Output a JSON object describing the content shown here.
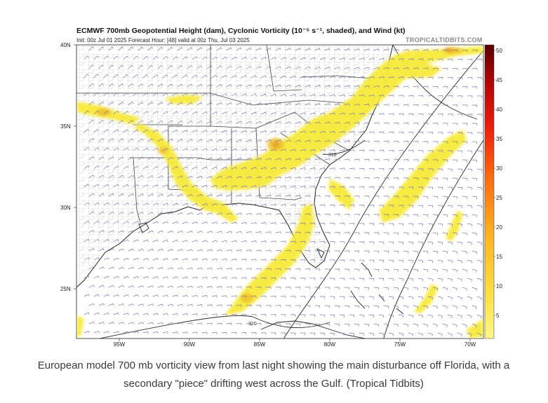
{
  "figure": {
    "title": "ECMWF 700mb Geopotential Height (dam), Cyclonic Vorticity (10⁻⁵ s⁻¹, shaded), and Wind (kt)",
    "subtitle": "Init: 00z Jul 01 2025   Forecast Hour: [48]   valid at 00z Thu, Jul 03 2025",
    "credit": "TROPICALTIDBITS.COM",
    "lon_labels": [
      "95W",
      "90W",
      "85W",
      "80W",
      "75W",
      "70W"
    ],
    "lat_labels": [
      "40N",
      "35N",
      "30N",
      "25N"
    ],
    "colorbar_labels": [
      "50",
      "45",
      "40",
      "35",
      "30",
      "25",
      "20",
      "15",
      "10",
      "5"
    ],
    "contour_labels": [
      "316",
      "320"
    ],
    "colors": {
      "vort_light": "#f7e93a",
      "vort_mid": "#f4c431",
      "vort_high": "#e89a2b",
      "scale_low": "#ffee55",
      "scale_high": "#6b0000",
      "border": "#333333",
      "state_line": "#555555",
      "county_line": "#b5b5b5",
      "wind_barb": "#7b78a8"
    }
  },
  "caption": "European model 700 mb vorticity view from last night showing the main disturbance off Florida, with a secondary \"piece\" drifting west across the Gulf. (Tropical Tidbits)"
}
